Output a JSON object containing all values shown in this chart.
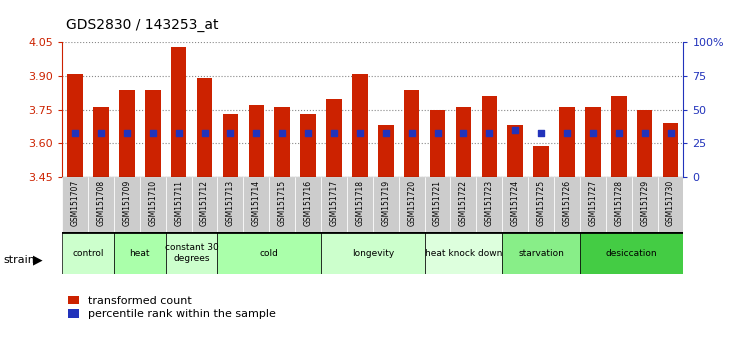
{
  "title": "GDS2830 / 143253_at",
  "samples": [
    "GSM151707",
    "GSM151708",
    "GSM151709",
    "GSM151710",
    "GSM151711",
    "GSM151712",
    "GSM151713",
    "GSM151714",
    "GSM151715",
    "GSM151716",
    "GSM151717",
    "GSM151718",
    "GSM151719",
    "GSM151720",
    "GSM151721",
    "GSM151722",
    "GSM151723",
    "GSM151724",
    "GSM151725",
    "GSM151726",
    "GSM151727",
    "GSM151728",
    "GSM151729",
    "GSM151730"
  ],
  "bar_values": [
    3.91,
    3.76,
    3.84,
    3.84,
    4.03,
    3.89,
    3.73,
    3.77,
    3.76,
    3.73,
    3.8,
    3.91,
    3.68,
    3.84,
    3.75,
    3.76,
    3.81,
    3.68,
    3.59,
    3.76,
    3.76,
    3.81,
    3.75,
    3.69
  ],
  "blue_pct": [
    33,
    33,
    33,
    33,
    33,
    33,
    33,
    33,
    33,
    33,
    33,
    33,
    33,
    33,
    33,
    33,
    33,
    35,
    33,
    33,
    33,
    33,
    33,
    33
  ],
  "ylim": [
    3.45,
    4.05
  ],
  "yticks": [
    3.45,
    3.6,
    3.75,
    3.9,
    4.05
  ],
  "y2ticks": [
    0,
    25,
    50,
    75,
    100
  ],
  "bar_color": "#cc2200",
  "blue_color": "#2233bb",
  "tick_bg_color": "#cccccc",
  "group_colors": [
    "#ccffcc",
    "#aaffaa",
    "#ccffcc",
    "#aaffaa",
    "#ccffcc",
    "#ddffdd",
    "#88ee88",
    "#44cc44"
  ],
  "groups": [
    {
      "label": "control",
      "start": 0,
      "end": 2
    },
    {
      "label": "heat",
      "start": 2,
      "end": 4
    },
    {
      "label": "constant 30\ndegrees",
      "start": 4,
      "end": 6
    },
    {
      "label": "cold",
      "start": 6,
      "end": 10
    },
    {
      "label": "longevity",
      "start": 10,
      "end": 14
    },
    {
      "label": "heat knock down",
      "start": 14,
      "end": 17
    },
    {
      "label": "starvation",
      "start": 17,
      "end": 20
    },
    {
      "label": "desiccation",
      "start": 20,
      "end": 24
    }
  ],
  "legend_red": "transformed count",
  "legend_blue": "percentile rank within the sample"
}
